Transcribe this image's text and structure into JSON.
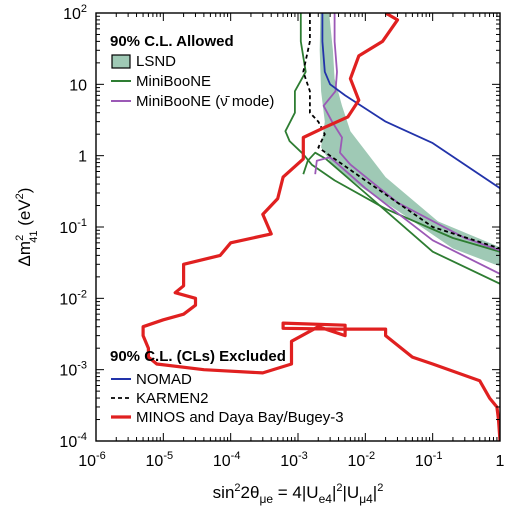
{
  "chart_data": {
    "type": "line",
    "xscale": "log",
    "yscale": "log",
    "xlim": [
      1e-06,
      1
    ],
    "ylim": [
      0.0001,
      100
    ],
    "grid": false,
    "xlabel": "sin²2θμe = 4|Ue4|²|Uμ4|²",
    "ylabel": "Δm²41 (eV²)",
    "x_ticks": [
      {
        "base": "10",
        "exp": "-6"
      },
      {
        "base": "10",
        "exp": "-5"
      },
      {
        "base": "10",
        "exp": "-4"
      },
      {
        "base": "10",
        "exp": "-3"
      },
      {
        "base": "10",
        "exp": "-2"
      },
      {
        "base": "10",
        "exp": "-1"
      },
      {
        "base": "1",
        "exp": ""
      }
    ],
    "y_ticks": [
      {
        "base": "10",
        "exp": "-4"
      },
      {
        "base": "10",
        "exp": "-3"
      },
      {
        "base": "10",
        "exp": "-2"
      },
      {
        "base": "10",
        "exp": "-1"
      },
      {
        "base": "1",
        "exp": ""
      },
      {
        "base": "10",
        "exp": ""
      },
      {
        "base": "10",
        "exp": "2"
      }
    ],
    "legend_allowed": {
      "heading": "90% C.L. Allowed",
      "entries": [
        "LSND",
        "MiniBooNE",
        "MiniBooNE (ν̄ mode)"
      ]
    },
    "legend_excluded": {
      "heading": "90% C.L. (CLs) Excluded",
      "entries": [
        "NOMAD",
        "KARMEN2",
        "MINOS and Daya Bay/Bugey-3"
      ]
    },
    "series": [
      {
        "name": "LSND",
        "kind": "region",
        "color": "#9fc9b5",
        "points": [
          [
            0.00215,
            100
          ],
          [
            0.0029,
            100
          ],
          [
            0.0033,
            30
          ],
          [
            0.0035,
            12
          ],
          [
            0.0045,
            5
          ],
          [
            0.006,
            2.2
          ],
          [
            0.02,
            0.5
          ],
          [
            0.12,
            0.12
          ],
          [
            1,
            0.052
          ],
          [
            1,
            0.028
          ],
          [
            0.2,
            0.05
          ],
          [
            0.03,
            0.17
          ],
          [
            0.008,
            0.38
          ],
          [
            0.0032,
            0.75
          ],
          [
            0.0022,
            1.3
          ],
          [
            0.0025,
            3
          ],
          [
            0.0022,
            8
          ],
          [
            0.0021,
            30
          ]
        ]
      },
      {
        "name": "MiniBooNE",
        "kind": "line",
        "color": "#2e7d32",
        "points": [
          [
            0.0011,
            100
          ],
          [
            0.0011,
            40
          ],
          [
            0.0013,
            15
          ],
          [
            0.0009,
            8
          ],
          [
            0.0009,
            4
          ],
          [
            0.00065,
            2.2
          ],
          [
            0.00075,
            1.6
          ],
          [
            0.0012,
            1.05
          ],
          [
            0.0016,
            0.75
          ],
          [
            0.0035,
            0.45
          ],
          [
            0.02,
            0.18
          ],
          [
            0.2,
            0.07
          ],
          [
            1,
            0.045
          ]
        ]
      },
      {
        "name": "MiniBooNE",
        "kind": "line",
        "color": "#2e7d32",
        "points": [
          [
            0.0012,
            0.55
          ],
          [
            0.0014,
            0.85
          ],
          [
            0.0018,
            1.1
          ],
          [
            0.0026,
            0.9
          ],
          [
            0.01,
            0.3
          ],
          [
            0.1,
            0.045
          ],
          [
            1,
            0.016
          ]
        ]
      },
      {
        "name": "MiniBooNE (ν̄ mode)",
        "kind": "line",
        "color": "#9b59b6",
        "points": [
          [
            0.0035,
            100
          ],
          [
            0.0035,
            40
          ],
          [
            0.0038,
            15
          ],
          [
            0.0036,
            8
          ],
          [
            0.0024,
            5
          ],
          [
            0.0032,
            3
          ],
          [
            0.0045,
            1.8
          ],
          [
            0.0042,
            1.1
          ],
          [
            0.006,
            0.75
          ],
          [
            0.03,
            0.22
          ],
          [
            0.3,
            0.07
          ],
          [
            1,
            0.047
          ]
        ]
      },
      {
        "name": "MiniBooNE (ν̄ mode)",
        "kind": "line",
        "color": "#9b59b6",
        "points": [
          [
            0.0018,
            0.55
          ],
          [
            0.0019,
            0.85
          ],
          [
            0.003,
            0.95
          ],
          [
            0.01,
            0.35
          ],
          [
            0.1,
            0.065
          ],
          [
            1,
            0.022
          ]
        ]
      },
      {
        "name": "NOMAD",
        "kind": "line",
        "color": "#2233aa",
        "points": [
          [
            0.0023,
            100
          ],
          [
            0.0023,
            40
          ],
          [
            0.0025,
            15
          ],
          [
            0.003,
            10
          ],
          [
            0.005,
            7
          ],
          [
            0.02,
            3
          ],
          [
            0.1,
            1.5
          ],
          [
            1,
            0.35
          ]
        ]
      },
      {
        "name": "KARMEN2",
        "kind": "dashed",
        "color": "#000000",
        "points": [
          [
            0.0015,
            100
          ],
          [
            0.0015,
            40
          ],
          [
            0.0012,
            15
          ],
          [
            0.0015,
            8
          ],
          [
            0.0015,
            4
          ],
          [
            0.002,
            3
          ],
          [
            0.0025,
            2
          ],
          [
            0.002,
            1.3
          ],
          [
            0.003,
            1
          ],
          [
            0.01,
            0.45
          ],
          [
            0.1,
            0.1
          ],
          [
            1,
            0.05
          ]
        ]
      },
      {
        "name": "MINOS and Daya Bay/Bugey-3",
        "kind": "line",
        "color": "#e02020",
        "points": [
          [
            0.02,
            100
          ],
          [
            0.03,
            80
          ],
          [
            0.018,
            40
          ],
          [
            0.008,
            25
          ],
          [
            0.006,
            12
          ],
          [
            0.008,
            6
          ],
          [
            0.0055,
            3.5
          ],
          [
            0.0025,
            2.5
          ],
          [
            0.0012,
            1.8
          ],
          [
            0.0012,
            0.9
          ],
          [
            0.0006,
            0.5
          ],
          [
            0.0005,
            0.25
          ],
          [
            0.0003,
            0.15
          ],
          [
            0.0004,
            0.08
          ],
          [
            0.0001,
            0.06
          ],
          [
            7e-05,
            0.04
          ],
          [
            2e-05,
            0.03
          ],
          [
            2e-05,
            0.015
          ],
          [
            1.5e-05,
            0.012
          ],
          [
            3e-05,
            0.01
          ],
          [
            3e-05,
            0.008
          ],
          [
            2e-05,
            0.006
          ],
          [
            1e-05,
            0.005
          ],
          [
            5e-06,
            0.004
          ],
          [
            5e-06,
            0.003
          ],
          [
            6e-06,
            0.002
          ],
          [
            6e-06,
            0.0015
          ],
          [
            8e-06,
            0.0012
          ],
          [
            4e-05,
            0.001
          ],
          [
            0.0003,
            0.0009
          ],
          [
            0.0008,
            0.0012
          ],
          [
            0.0008,
            0.0025
          ],
          [
            0.002,
            0.004
          ],
          [
            0.005,
            0.003
          ],
          [
            0.005,
            0.0042
          ],
          [
            0.0006,
            0.0045
          ],
          [
            0.0006,
            0.0038
          ],
          [
            0.004,
            0.0037
          ],
          [
            0.02,
            0.0037
          ],
          [
            0.02,
            0.003
          ],
          [
            0.05,
            0.0015
          ],
          [
            0.1,
            0.0012
          ],
          [
            0.5,
            0.0007
          ],
          [
            0.7,
            0.0004
          ],
          [
            0.9,
            0.0003
          ],
          [
            0.95,
            0.0002
          ],
          [
            1,
            0.0001
          ]
        ]
      }
    ]
  }
}
